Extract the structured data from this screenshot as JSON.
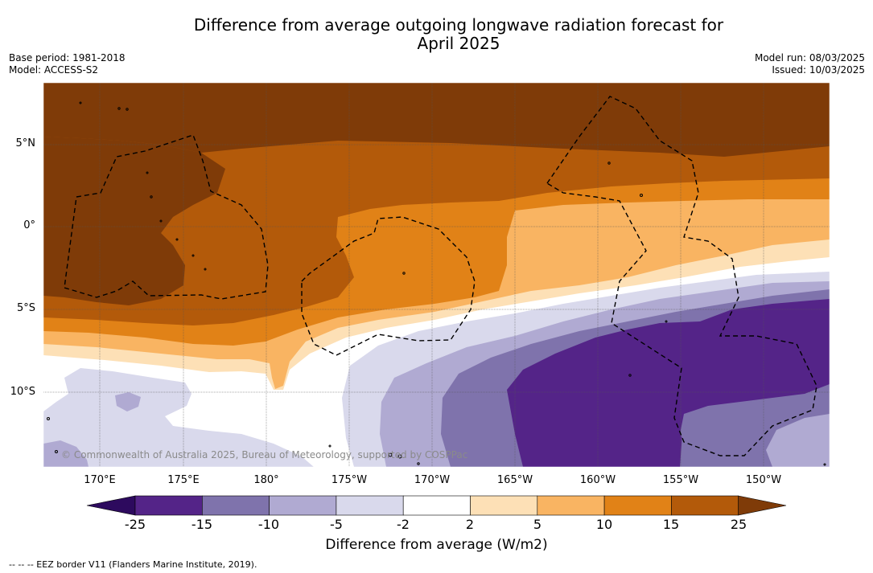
{
  "title_line1": "Difference from average outgoing longwave radiation forecast for",
  "title_line2": "April 2025",
  "base_period": "Base period: 1981-2018",
  "model": "Model: ACCESS-S2",
  "model_run": "Model run: 08/03/2025",
  "issued": "Issued: 10/03/2025",
  "lat_labels": [
    "5°N",
    "0°",
    "5°S",
    "10°S"
  ],
  "lon_labels": [
    "170°E",
    "175°E",
    "180°",
    "175°W",
    "170°W",
    "165°W",
    "160°W",
    "155°W",
    "150°W"
  ],
  "copyright": "© Commonwealth of Australia 2025, Bureau of Meteorology, supported by COSPPac",
  "colorbar": {
    "ticks": [
      "-25",
      "-15",
      "-10",
      "-5",
      "-2",
      "2",
      "5",
      "10",
      "15",
      "25"
    ],
    "colors": [
      "#2d0a5e",
      "#542488",
      "#7f73ac",
      "#b0aad2",
      "#d9d9ec",
      "#ffffff",
      "#fde0b6",
      "#f9b462",
      "#e18217",
      "#b35a0a",
      "#7f3b08"
    ],
    "label": "Difference from average (W/m2)"
  },
  "legend_note": "--  --  -- EEZ border V11 (Flanders Marine Institute, 2019)."
}
